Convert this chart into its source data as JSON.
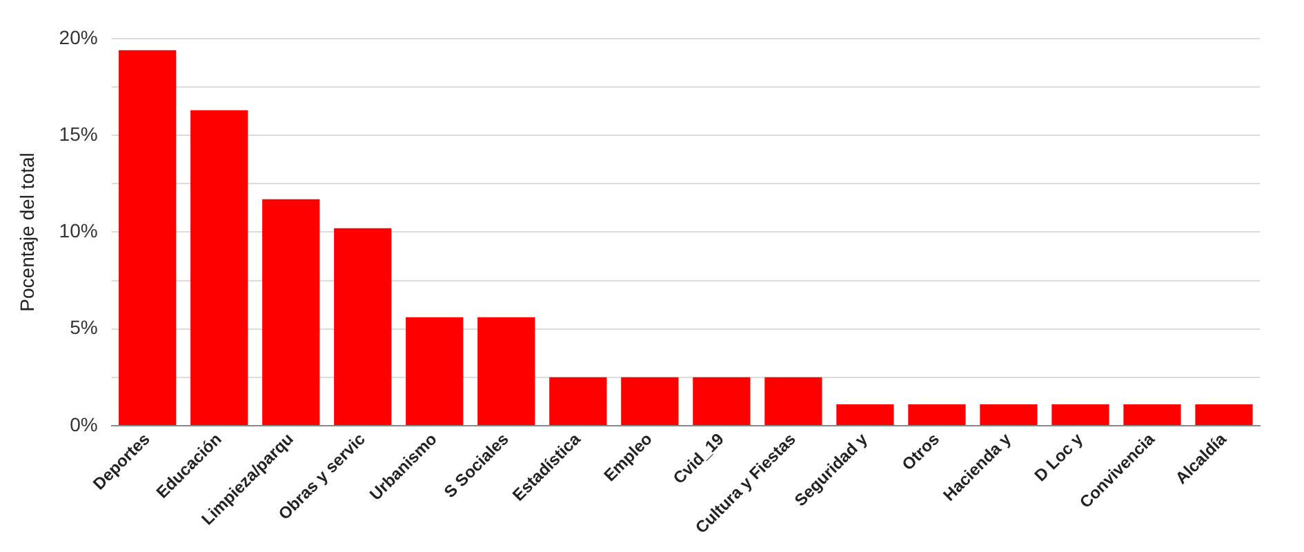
{
  "chart_data": {
    "type": "bar",
    "ylabel": "Pocentaje del total",
    "categories": [
      "Deportes",
      "Educación",
      "Limpieza/parqu",
      "Obras y servic",
      "Urbanismo",
      "S Sociales",
      "Estadística",
      "Empleo",
      "Cvid_19",
      "Cultura y Fiestas",
      "Seguridad y",
      "Otros",
      "Hacienda y",
      "D Loc y",
      "Convivencia",
      "Alcaldía"
    ],
    "values": [
      19.4,
      16.3,
      11.7,
      10.2,
      5.6,
      5.6,
      2.5,
      2.5,
      2.5,
      2.5,
      1.1,
      1.1,
      1.1,
      1.1,
      1.1,
      1.1
    ],
    "color": "#ff0000",
    "ylim": [
      0,
      20
    ],
    "yticks": [
      {
        "value": 0,
        "label": "0%"
      },
      {
        "value": 2.5,
        "label": null
      },
      {
        "value": 5,
        "label": "5%"
      },
      {
        "value": 7.5,
        "label": null
      },
      {
        "value": 10,
        "label": "10%"
      },
      {
        "value": 12.5,
        "label": null
      },
      {
        "value": 15,
        "label": "15%"
      },
      {
        "value": 17.5,
        "label": null
      },
      {
        "value": 20,
        "label": "20%"
      }
    ],
    "grid": "y"
  }
}
